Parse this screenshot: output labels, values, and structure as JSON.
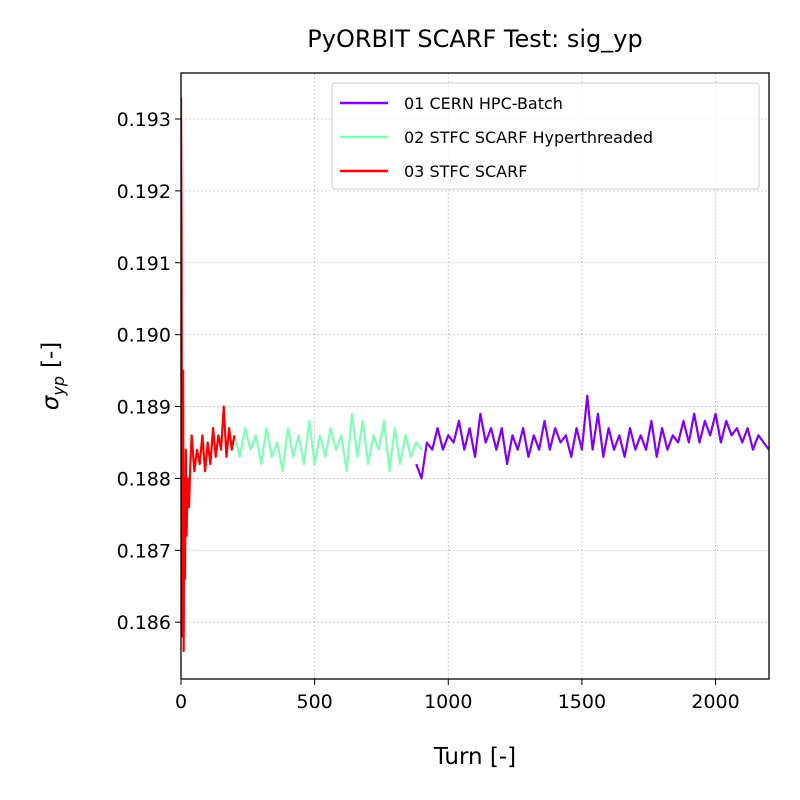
{
  "chart_data": {
    "type": "line",
    "title": "PyORBIT SCARF Test: sig_yp",
    "xlabel": "Turn [-]",
    "ylabel": [
      "σ",
      "yp",
      "[-]"
    ],
    "xlim": [
      0,
      2200
    ],
    "ylim": [
      0.18521,
      0.19364
    ],
    "xticks": [
      0,
      500,
      1000,
      1500,
      2000
    ],
    "yticks": [
      0.186,
      0.187,
      0.188,
      0.189,
      {
        "value": 0.19,
        "label": "0.190"
      },
      0.191,
      0.192,
      0.193
    ],
    "grid": true,
    "legend": "upper right",
    "series": [
      {
        "name": "01 CERN HPC-Batch",
        "color": "#8000ff",
        "x": [
          880,
          900,
          920,
          940,
          960,
          980,
          1000,
          1020,
          1040,
          1060,
          1080,
          1100,
          1120,
          1140,
          1160,
          1180,
          1200,
          1220,
          1240,
          1260,
          1280,
          1300,
          1320,
          1340,
          1360,
          1380,
          1400,
          1420,
          1440,
          1460,
          1480,
          1500,
          1520,
          1540,
          1560,
          1580,
          1600,
          1620,
          1640,
          1660,
          1680,
          1700,
          1720,
          1740,
          1760,
          1780,
          1800,
          1820,
          1840,
          1860,
          1880,
          1900,
          1920,
          1940,
          1960,
          1980,
          2000,
          2020,
          2040,
          2060,
          2080,
          2100,
          2120,
          2140,
          2160,
          2180,
          2200
        ],
        "values": [
          0.1882,
          0.188,
          0.1885,
          0.1884,
          0.1887,
          0.1884,
          0.1886,
          0.1885,
          0.1888,
          0.1884,
          0.1887,
          0.1883,
          0.1889,
          0.1885,
          0.1887,
          0.1884,
          0.1887,
          0.1882,
          0.1886,
          0.1884,
          0.1887,
          0.1883,
          0.1886,
          0.1884,
          0.1888,
          0.1884,
          0.1887,
          0.1885,
          0.1886,
          0.1883,
          0.1887,
          0.1884,
          0.18915,
          0.1884,
          0.1889,
          0.1883,
          0.1887,
          0.1884,
          0.1886,
          0.1883,
          0.1887,
          0.1884,
          0.1886,
          0.1884,
          0.1888,
          0.1883,
          0.1887,
          0.1884,
          0.1886,
          0.1885,
          0.1888,
          0.1885,
          0.1889,
          0.1885,
          0.1888,
          0.1886,
          0.1889,
          0.1885,
          0.1888,
          0.1886,
          0.1887,
          0.1885,
          0.1887,
          0.1884,
          0.1886,
          0.1885,
          0.1884
        ]
      },
      {
        "name": "02 STFC SCARF Hyperthreaded",
        "color": "#80ffb4",
        "x": [
          200,
          220,
          240,
          260,
          280,
          300,
          320,
          340,
          360,
          380,
          400,
          420,
          440,
          460,
          480,
          500,
          520,
          540,
          560,
          580,
          600,
          620,
          640,
          660,
          680,
          700,
          720,
          740,
          760,
          780,
          800,
          820,
          840,
          860,
          880,
          900
        ],
        "values": [
          0.1886,
          0.1883,
          0.1887,
          0.1884,
          0.1886,
          0.1882,
          0.1887,
          0.1883,
          0.1885,
          0.1881,
          0.1887,
          0.1883,
          0.1886,
          0.1882,
          0.1888,
          0.1882,
          0.1886,
          0.1883,
          0.1887,
          0.1884,
          0.1886,
          0.1881,
          0.1889,
          0.1883,
          0.1888,
          0.1882,
          0.1886,
          0.1884,
          0.1888,
          0.1881,
          0.1887,
          0.1882,
          0.1886,
          0.1883,
          0.1885,
          0.1884
        ]
      },
      {
        "name": "03 STFC SCARF",
        "color": "#ff0000",
        "x": [
          0,
          2,
          4,
          6,
          8,
          10,
          12,
          15,
          18,
          21,
          25,
          30,
          35,
          40,
          50,
          60,
          70,
          80,
          90,
          100,
          110,
          120,
          130,
          140,
          150,
          160,
          170,
          180,
          190,
          200
        ],
        "values": [
          0.1933,
          0.1915,
          0.187,
          0.1858,
          0.1895,
          0.1856,
          0.188,
          0.1866,
          0.1884,
          0.1872,
          0.188,
          0.1876,
          0.1882,
          0.1886,
          0.1881,
          0.1884,
          0.1882,
          0.1886,
          0.1881,
          0.1885,
          0.1882,
          0.1887,
          0.1883,
          0.1886,
          0.1884,
          0.189,
          0.1883,
          0.1887,
          0.1884,
          0.1886
        ]
      }
    ]
  }
}
